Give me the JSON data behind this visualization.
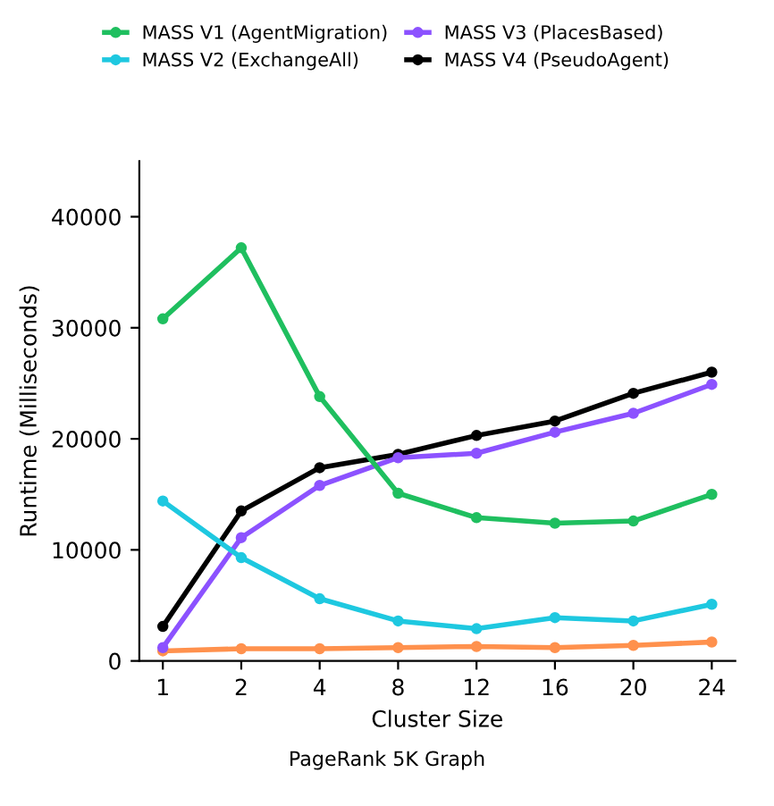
{
  "chart_data": {
    "type": "line",
    "title": "PageRank 5K Graph",
    "xlabel": "Cluster Size",
    "ylabel": "Runtime (Milliseconds)",
    "categories": [
      "1",
      "2",
      "4",
      "8",
      "12",
      "16",
      "20",
      "24"
    ],
    "series": [
      {
        "name": "MASS V1 (AgentMigration)",
        "color": "#1fbf5f",
        "values": [
          30800,
          37200,
          23800,
          15100,
          12900,
          12400,
          12600,
          15000
        ]
      },
      {
        "name": "MASS V2 (ExchangeAll)",
        "color": "#1ec8e0",
        "values": [
          14400,
          9300,
          5600,
          3600,
          2900,
          3900,
          3600,
          5100
        ]
      },
      {
        "name": "MASS V3 (PlacesBased)",
        "color": "#8c52ff",
        "values": [
          1200,
          11100,
          15800,
          18300,
          18700,
          20600,
          22300,
          24900
        ]
      },
      {
        "name": "MASS V4 (PseudoAgent)",
        "color": "#000000",
        "values": [
          3100,
          13500,
          17400,
          18600,
          20300,
          21600,
          24100,
          26000
        ]
      },
      {
        "color": "#ff914d",
        "values": [
          900,
          1100,
          1100,
          1200,
          1300,
          1200,
          1400,
          1700
        ]
      }
    ],
    "ylim": [
      0,
      45000
    ],
    "yticks": [
      0,
      10000,
      20000,
      30000,
      40000
    ],
    "grid": false,
    "legend": "top",
    "marker": "circle",
    "line_style": "solid"
  }
}
